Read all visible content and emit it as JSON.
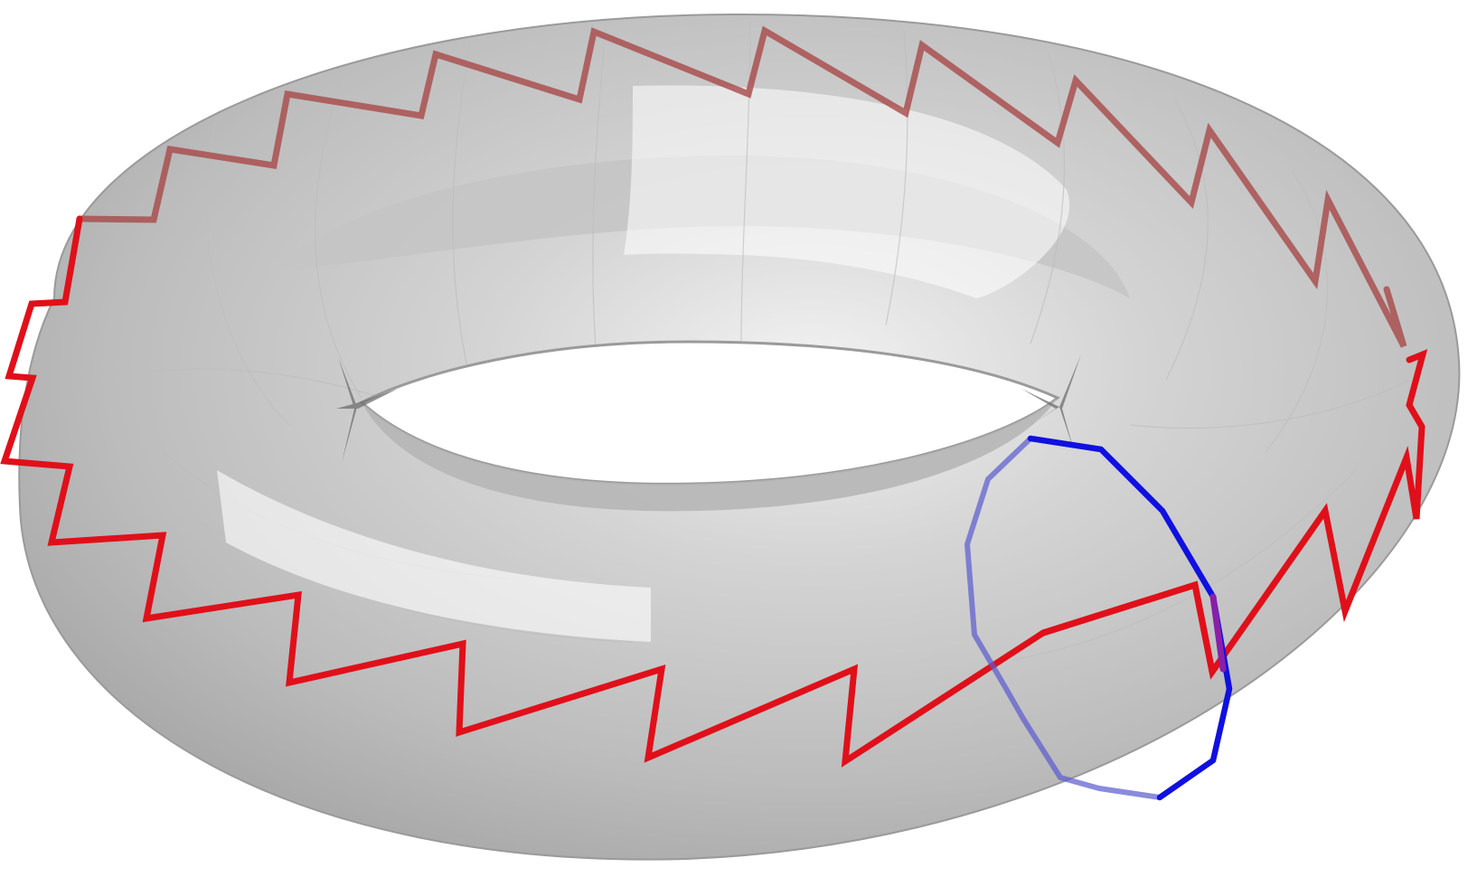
{
  "figure": {
    "subject": "torus-with-curves",
    "colors": {
      "background": "#ffffff",
      "surface_light": "#f4f4f4",
      "surface_mid": "#c8c8c8",
      "surface_dark": "#9a9a9a",
      "surface_edge": "#8c8c8c",
      "meridian": "#1010e0",
      "zigzag": "#e0101a",
      "zigzag_back": "#a84848"
    },
    "curves": [
      {
        "name": "zigzag-curve",
        "color": "#e0101a",
        "teeth": 28
      },
      {
        "name": "meridian-circle",
        "color": "#1010e0",
        "segments": 12
      }
    ]
  }
}
